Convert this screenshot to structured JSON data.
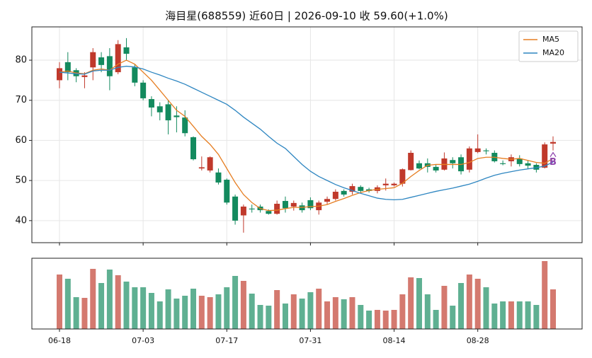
{
  "chart_data": {
    "type": "candlestick",
    "title": "海目星(688559) 近60日  |  2026-09-10 收 59.60(+1.0%)",
    "categories": [
      "06-18",
      null,
      null,
      null,
      null,
      null,
      null,
      null,
      null,
      null,
      "07-03",
      null,
      null,
      null,
      null,
      null,
      null,
      null,
      null,
      null,
      "07-17",
      null,
      null,
      null,
      null,
      null,
      null,
      null,
      null,
      null,
      "07-31",
      null,
      null,
      null,
      null,
      null,
      null,
      null,
      null,
      null,
      "08-14",
      null,
      null,
      null,
      null,
      null,
      null,
      null,
      null,
      null,
      "08-28",
      null,
      null,
      null,
      null,
      null,
      null,
      null,
      null,
      null
    ],
    "open": [
      75,
      79.5,
      77.5,
      75.8,
      78.2,
      80.7,
      81,
      77,
      83.2,
      78.2,
      74.4,
      70.3,
      68.5,
      69,
      66.2,
      65.7,
      60.8,
      53,
      52.5,
      52,
      50.2,
      46,
      41.3,
      43,
      43.5,
      42.4,
      41.7,
      44.9,
      43.5,
      43.8,
      45.1,
      42.6,
      44.7,
      45.4,
      47.4,
      47.2,
      48.4,
      47.8,
      47.4,
      48.8,
      48.8,
      49.2,
      52.6,
      54.3,
      54.3,
      53.4,
      52.7,
      55.1,
      55.8,
      52.7,
      57.1,
      57.5,
      56.9,
      54.3,
      54.8,
      55.5,
      54.3,
      53.9,
      53.2,
      59.2
    ],
    "high": [
      79.5,
      82,
      78,
      77,
      83,
      82,
      83,
      85,
      85.5,
      79,
      75,
      71,
      69.5,
      70,
      68.5,
      67.5,
      61,
      56,
      56,
      53,
      50.5,
      46.5,
      44,
      44,
      44,
      42.8,
      45,
      46,
      45,
      44.5,
      45.8,
      45,
      46,
      47.8,
      47.8,
      49.2,
      48.8,
      48.2,
      48.8,
      50.5,
      49.5,
      53,
      57.5,
      55,
      55.5,
      54,
      57,
      55.8,
      56.5,
      58.5,
      61.5,
      58,
      57.5,
      55,
      56.5,
      56.3,
      55,
      54.3,
      59.5,
      61
    ],
    "low": [
      73,
      75,
      74.5,
      73,
      75,
      77,
      72.5,
      76.5,
      80,
      73.5,
      70,
      66,
      65,
      61.5,
      62,
      61,
      55,
      52.5,
      52,
      49,
      44,
      39,
      37,
      42,
      42,
      41.5,
      41.5,
      42,
      42.5,
      42,
      42.6,
      41.5,
      44,
      45,
      46,
      46.5,
      46.8,
      47,
      46.8,
      47.5,
      48.5,
      48.5,
      52.5,
      52.8,
      52,
      52,
      52.5,
      53,
      51.5,
      52,
      56.8,
      56.5,
      54.5,
      53.8,
      53.5,
      53.5,
      53,
      52,
      53,
      57.5
    ],
    "close": [
      78,
      77,
      76,
      76.2,
      82,
      78.8,
      76,
      84,
      81.6,
      74.4,
      70.5,
      68.2,
      67,
      65,
      65.8,
      61.8,
      55.3,
      53.3,
      55.8,
      49.5,
      44.5,
      40,
      43.5,
      42.8,
      42.6,
      41.7,
      44.2,
      43.1,
      44.4,
      42.6,
      43.1,
      44.5,
      45.4,
      47.2,
      46.5,
      48.6,
      47.4,
      47.4,
      48.3,
      49.2,
      49.2,
      52.8,
      56.9,
      53,
      53.4,
      52.5,
      55.5,
      54.3,
      52.3,
      58,
      58,
      57.3,
      54.8,
      54.1,
      55.8,
      54.1,
      53.7,
      52.7,
      59,
      59.6
    ],
    "up_color": "#c0392b",
    "down_color": "#138a5e",
    "ylim": [
      34.5,
      88.3
    ],
    "yticks": [
      40,
      50,
      60,
      70,
      80
    ],
    "grid": true,
    "legend": "upper right",
    "series": [
      {
        "name": "MA5",
        "color": "#e67e22",
        "values": [
          77,
          77.3,
          76.8,
          76.6,
          77.5,
          77.8,
          77.5,
          79,
          80,
          79,
          77,
          75,
          72.5,
          70,
          67.5,
          66,
          63.5,
          61,
          59,
          56.5,
          53,
          49.5,
          46.5,
          44.5,
          43,
          42.5,
          42.6,
          43,
          43.3,
          43.3,
          43.5,
          43.6,
          44,
          44.8,
          45.5,
          46.3,
          47,
          47.5,
          47.8,
          48,
          48.2,
          49.3,
          51,
          52.5,
          53.8,
          54,
          54,
          54,
          54,
          54.5,
          55.5,
          55.8,
          55.8,
          55.5,
          55.3,
          55.5,
          55,
          54.5,
          54.3,
          55.5
        ]
      },
      {
        "name": "MA20",
        "color": "#2e86c1",
        "values": [
          77,
          76.8,
          76.6,
          76.5,
          77.3,
          77.5,
          77.5,
          78.2,
          78.5,
          78.3,
          77.8,
          77,
          76.3,
          75.5,
          74.8,
          74,
          73,
          72,
          71,
          70,
          69,
          67.5,
          65.8,
          64.3,
          62.8,
          61,
          59.3,
          58,
          56,
          54,
          52.3,
          51,
          50,
          49,
          48.2,
          47.5,
          46.8,
          46.2,
          45.6,
          45.3,
          45.2,
          45.3,
          45.8,
          46.3,
          46.8,
          47.3,
          47.7,
          48.1,
          48.6,
          49.1,
          49.8,
          50.6,
          51.3,
          51.8,
          52.2,
          52.6,
          52.9,
          53.2,
          53.6,
          54.6
        ]
      }
    ],
    "volume": {
      "values": [
        77,
        71,
        45,
        44,
        85,
        65,
        84,
        76,
        67,
        59,
        59,
        51,
        39,
        56,
        43,
        47,
        57,
        47,
        45,
        49,
        59,
        75,
        68,
        50,
        34,
        33,
        55,
        36,
        49,
        43,
        52,
        57,
        39,
        45,
        42,
        45,
        34,
        26,
        27,
        26,
        27,
        49,
        73,
        72,
        49,
        27,
        61,
        33,
        65,
        77,
        71,
        59,
        36,
        39,
        39,
        39,
        39,
        34,
        96,
        56
      ],
      "ylim": [
        0,
        100
      ]
    },
    "annotations": [
      {
        "text": "B",
        "index": 59,
        "color": "#8e44ad"
      }
    ]
  }
}
